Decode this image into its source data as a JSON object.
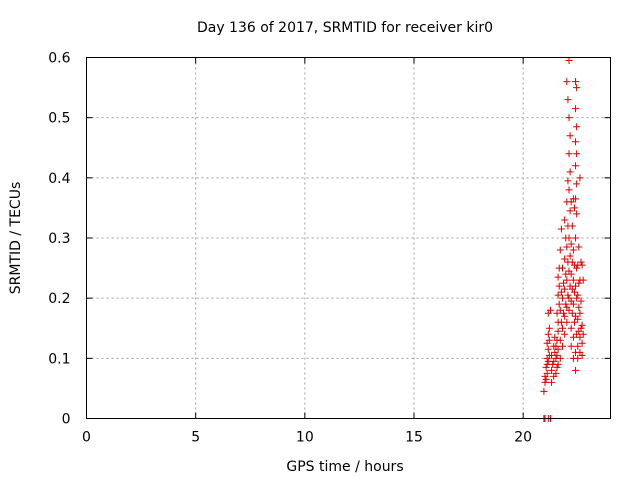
{
  "chart_data": {
    "type": "scatter",
    "title": "Day 136 of 2017, SRMTID for receiver kir0",
    "xlabel": "GPS time / hours",
    "ylabel": "SRMTID / TECUs",
    "xlim": [
      0,
      24
    ],
    "ylim": [
      0,
      0.6
    ],
    "x_ticks": [
      0,
      5,
      10,
      15,
      20
    ],
    "x_tick_labels": [
      "0",
      "5",
      "10",
      "15",
      "20"
    ],
    "y_ticks": [
      0,
      0.1,
      0.2,
      0.3,
      0.4,
      0.5,
      0.6
    ],
    "y_tick_labels": [
      "0",
      "0.1",
      "0.2",
      "0.3",
      "0.4",
      "0.5",
      "0.6"
    ],
    "grid": true,
    "marker": "plus",
    "color": "#dd0000",
    "series": [
      {
        "points": [
          [
            20.95,
            0.0
          ],
          [
            21.0,
            0.0
          ],
          [
            21.15,
            0.0
          ],
          [
            21.25,
            0.0
          ],
          [
            20.95,
            0.045
          ],
          [
            21.0,
            0.06
          ],
          [
            21.05,
            0.065
          ],
          [
            21.0,
            0.07
          ],
          [
            21.1,
            0.075
          ],
          [
            21.05,
            0.085
          ],
          [
            21.1,
            0.09
          ],
          [
            21.15,
            0.095
          ],
          [
            21.1,
            0.1
          ],
          [
            21.2,
            0.105
          ],
          [
            21.15,
            0.115
          ],
          [
            21.1,
            0.125
          ],
          [
            21.2,
            0.13
          ],
          [
            21.15,
            0.14
          ],
          [
            21.2,
            0.15
          ],
          [
            21.15,
            0.175
          ],
          [
            21.25,
            0.18
          ],
          [
            21.3,
            0.06
          ],
          [
            21.3,
            0.08
          ],
          [
            21.35,
            0.09
          ],
          [
            21.3,
            0.105
          ],
          [
            21.4,
            0.07
          ],
          [
            21.4,
            0.095
          ],
          [
            21.45,
            0.11
          ],
          [
            21.4,
            0.12
          ],
          [
            21.5,
            0.075
          ],
          [
            21.5,
            0.1
          ],
          [
            21.55,
            0.085
          ],
          [
            21.55,
            0.105
          ],
          [
            21.5,
            0.12
          ],
          [
            21.45,
            0.135
          ],
          [
            21.6,
            0.09
          ],
          [
            21.6,
            0.115
          ],
          [
            21.55,
            0.13
          ],
          [
            21.6,
            0.145
          ],
          [
            21.6,
            0.16
          ],
          [
            21.55,
            0.175
          ],
          [
            21.65,
            0.19
          ],
          [
            21.6,
            0.205
          ],
          [
            21.65,
            0.22
          ],
          [
            21.6,
            0.235
          ],
          [
            21.65,
            0.25
          ],
          [
            21.7,
            0.1
          ],
          [
            21.7,
            0.13
          ],
          [
            21.75,
            0.16
          ],
          [
            21.7,
            0.18
          ],
          [
            21.75,
            0.21
          ],
          [
            21.7,
            0.28
          ],
          [
            21.75,
            0.315
          ],
          [
            21.8,
            0.12
          ],
          [
            21.8,
            0.15
          ],
          [
            21.85,
            0.175
          ],
          [
            21.8,
            0.2
          ],
          [
            21.85,
            0.225
          ],
          [
            21.8,
            0.25
          ],
          [
            21.9,
            0.14
          ],
          [
            21.9,
            0.17
          ],
          [
            21.95,
            0.19
          ],
          [
            21.9,
            0.215
          ],
          [
            21.95,
            0.24
          ],
          [
            21.9,
            0.265
          ],
          [
            21.95,
            0.3
          ],
          [
            21.9,
            0.33
          ],
          [
            22.0,
            0.16
          ],
          [
            22.0,
            0.185
          ],
          [
            22.05,
            0.205
          ],
          [
            22.0,
            0.23
          ],
          [
            22.05,
            0.26
          ],
          [
            22.0,
            0.285
          ],
          [
            22.05,
            0.32
          ],
          [
            22.0,
            0.36
          ],
          [
            22.05,
            0.395
          ],
          [
            22.1,
            0.18
          ],
          [
            22.1,
            0.2
          ],
          [
            22.15,
            0.22
          ],
          [
            22.1,
            0.245
          ],
          [
            22.15,
            0.27
          ],
          [
            22.1,
            0.3
          ],
          [
            22.15,
            0.345
          ],
          [
            22.1,
            0.38
          ],
          [
            22.15,
            0.41
          ],
          [
            22.1,
            0.44
          ],
          [
            22.15,
            0.47
          ],
          [
            22.1,
            0.5
          ],
          [
            22.05,
            0.53
          ],
          [
            22.0,
            0.56
          ],
          [
            22.1,
            0.595
          ],
          [
            22.2,
            0.12
          ],
          [
            22.2,
            0.15
          ],
          [
            22.25,
            0.175
          ],
          [
            22.2,
            0.195
          ],
          [
            22.25,
            0.215
          ],
          [
            22.2,
            0.24
          ],
          [
            22.25,
            0.26
          ],
          [
            22.2,
            0.29
          ],
          [
            22.25,
            0.32
          ],
          [
            22.2,
            0.36
          ],
          [
            22.3,
            0.1
          ],
          [
            22.3,
            0.135
          ],
          [
            22.35,
            0.16
          ],
          [
            22.3,
            0.19
          ],
          [
            22.35,
            0.21
          ],
          [
            22.3,
            0.23
          ],
          [
            22.35,
            0.255
          ],
          [
            22.3,
            0.28
          ],
          [
            22.35,
            0.35
          ],
          [
            22.3,
            0.365
          ],
          [
            22.4,
            0.08
          ],
          [
            22.4,
            0.11
          ],
          [
            22.45,
            0.14
          ],
          [
            22.4,
            0.17
          ],
          [
            22.45,
            0.2
          ],
          [
            22.4,
            0.22
          ],
          [
            22.45,
            0.25
          ],
          [
            22.4,
            0.3
          ],
          [
            22.45,
            0.34
          ],
          [
            22.4,
            0.365
          ],
          [
            22.45,
            0.39
          ],
          [
            22.4,
            0.42
          ],
          [
            22.45,
            0.44
          ],
          [
            22.4,
            0.46
          ],
          [
            22.45,
            0.485
          ],
          [
            22.4,
            0.515
          ],
          [
            22.45,
            0.55
          ],
          [
            22.4,
            0.56
          ],
          [
            22.5,
            0.1
          ],
          [
            22.5,
            0.12
          ],
          [
            22.55,
            0.145
          ],
          [
            22.5,
            0.165
          ],
          [
            22.55,
            0.185
          ],
          [
            22.5,
            0.205
          ],
          [
            22.55,
            0.225
          ],
          [
            22.5,
            0.255
          ],
          [
            22.55,
            0.285
          ],
          [
            22.6,
            0.11
          ],
          [
            22.6,
            0.135
          ],
          [
            22.65,
            0.15
          ],
          [
            22.6,
            0.175
          ],
          [
            22.65,
            0.195
          ],
          [
            22.6,
            0.23
          ],
          [
            22.65,
            0.26
          ],
          [
            22.6,
            0.4
          ],
          [
            22.7,
            0.105
          ],
          [
            22.7,
            0.125
          ],
          [
            22.75,
            0.14
          ],
          [
            22.7,
            0.155
          ],
          [
            22.75,
            0.23
          ],
          [
            22.7,
            0.255
          ]
        ]
      }
    ]
  }
}
